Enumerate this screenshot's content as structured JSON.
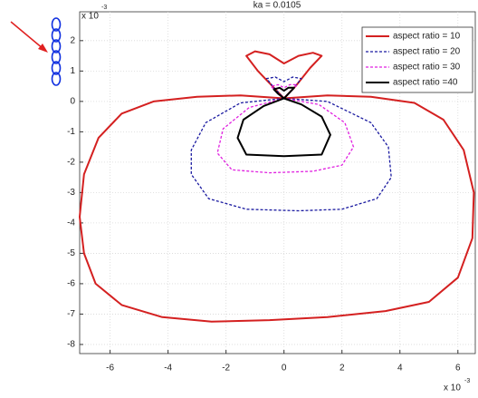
{
  "chart_data": {
    "type": "line",
    "title": "ka = 0.0105",
    "x_multiplier": {
      "base": "x 10",
      "exponent": "-3"
    },
    "y_multiplier": {
      "base": "x 10",
      "exponent": "-3"
    },
    "xlim": [
      -7.05,
      6.6
    ],
    "ylim": [
      -8.3,
      2.95
    ],
    "xticks": [
      -6,
      -4,
      -2,
      0,
      2,
      4,
      6
    ],
    "yticks": [
      -8,
      -7,
      -6,
      -5,
      -4,
      -3,
      -2,
      -1,
      0,
      1,
      2
    ],
    "grid": true,
    "legend": "upper right",
    "series": [
      {
        "name": "aspect ratio = 10",
        "color": "#d42020",
        "style": "solid",
        "x": [
          0,
          -1.5,
          -3,
          -4.5,
          -5.6,
          -6.4,
          -6.9,
          -7.05,
          -6.9,
          -6.5,
          -5.6,
          -4.2,
          -2.5,
          -0.5,
          1.5,
          3.5,
          5,
          6.0,
          6.5,
          6.55,
          6.2,
          5.5,
          4.5,
          3,
          1.5,
          0,
          0.4,
          0.9,
          1.3,
          1.0,
          0.5,
          0,
          -0.5,
          -1.0,
          -1.3,
          -0.9,
          -0.4,
          0
        ],
        "values": [
          0.1,
          0.2,
          0.15,
          0.0,
          -0.4,
          -1.2,
          -2.4,
          -3.8,
          -5.0,
          -6.0,
          -6.7,
          -7.1,
          -7.25,
          -7.2,
          -7.1,
          -6.9,
          -6.6,
          -5.8,
          -4.5,
          -3,
          -1.6,
          -0.6,
          -0.05,
          0.15,
          0.2,
          0.1,
          0.5,
          1.1,
          1.5,
          1.6,
          1.5,
          1.25,
          1.55,
          1.65,
          1.5,
          1.0,
          0.5,
          0.1
        ]
      },
      {
        "name": "aspect ratio = 20",
        "color": "#1a1aa0",
        "style": "dashed",
        "x": [
          0,
          -1.5,
          -2.7,
          -3.2,
          -3.2,
          -2.6,
          -1.3,
          0.5,
          2.0,
          3.2,
          3.7,
          3.6,
          3.0,
          1.5,
          0,
          0.3,
          0.6,
          0.3,
          0,
          -0.3,
          -0.6,
          -0.3,
          0
        ],
        "values": [
          0.1,
          -0.05,
          -0.7,
          -1.6,
          -2.4,
          -3.2,
          -3.55,
          -3.6,
          -3.55,
          -3.2,
          -2.5,
          -1.5,
          -0.7,
          0.0,
          0.1,
          0.4,
          0.75,
          0.8,
          0.65,
          0.8,
          0.75,
          0.4,
          0.1
        ]
      },
      {
        "name": "aspect ratio = 30",
        "color": "#e020e0",
        "style": "dashed",
        "x": [
          0,
          -1.2,
          -2.1,
          -2.3,
          -1.8,
          -0.5,
          1.0,
          2.0,
          2.4,
          2.1,
          1.2,
          0,
          0.25,
          0.45,
          0.2,
          0,
          -0.2,
          -0.45,
          -0.25,
          0
        ],
        "values": [
          0.1,
          -0.2,
          -0.9,
          -1.7,
          -2.25,
          -2.35,
          -2.3,
          -2.1,
          -1.5,
          -0.7,
          -0.1,
          0.1,
          0.35,
          0.55,
          0.55,
          0.45,
          0.55,
          0.5,
          0.3,
          0.1
        ]
      },
      {
        "name": "aspect ratio =40",
        "color": "#000000",
        "style": "solid",
        "x": [
          0,
          -0.7,
          -1.4,
          -1.6,
          -1.3,
          0,
          1.3,
          1.6,
          1.3,
          0.6,
          0,
          0.2,
          0.35,
          0.15,
          0,
          -0.15,
          -0.35,
          -0.2,
          0
        ],
        "values": [
          0.1,
          -0.15,
          -0.6,
          -1.2,
          -1.75,
          -1.8,
          -1.75,
          -1.1,
          -0.5,
          -0.1,
          0.1,
          0.3,
          0.45,
          0.45,
          0.35,
          0.45,
          0.4,
          0.25,
          0.1
        ]
      }
    ]
  }
}
